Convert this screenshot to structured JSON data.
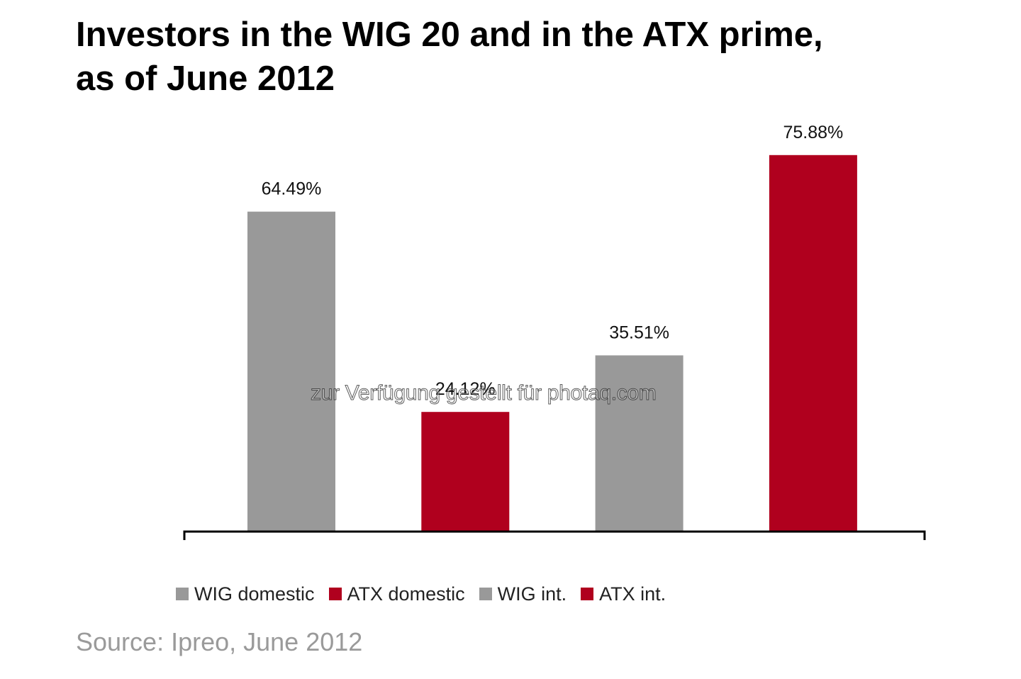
{
  "chart_data": {
    "type": "bar",
    "title": "Investors in the WIG 20 and in the ATX prime,\nas of June 2012",
    "categories": [
      "WIG domestic",
      "ATX domestic",
      "WIG int.",
      "ATX int."
    ],
    "values": [
      64.49,
      24.12,
      35.51,
      75.88
    ],
    "value_labels": [
      "64.49%",
      "24.12%",
      "35.51%",
      "75.88%"
    ],
    "colors": [
      "#999999",
      "#b0001e",
      "#999999",
      "#b0001e"
    ],
    "unit": "%",
    "ylim": [
      0,
      100
    ],
    "grid": false,
    "legend_position": "bottom",
    "xlabel": "",
    "ylabel": ""
  },
  "legend": [
    {
      "label": "WIG domestic",
      "color": "#999999"
    },
    {
      "label": "ATX domestic",
      "color": "#b0001e"
    },
    {
      "label": "WIG int.",
      "color": "#999999"
    },
    {
      "label": "ATX int.",
      "color": "#b0001e"
    }
  ],
  "watermark": "zur Verfügung gestellt für photaq.com",
  "source": "Source: Ipreo, June 2012"
}
